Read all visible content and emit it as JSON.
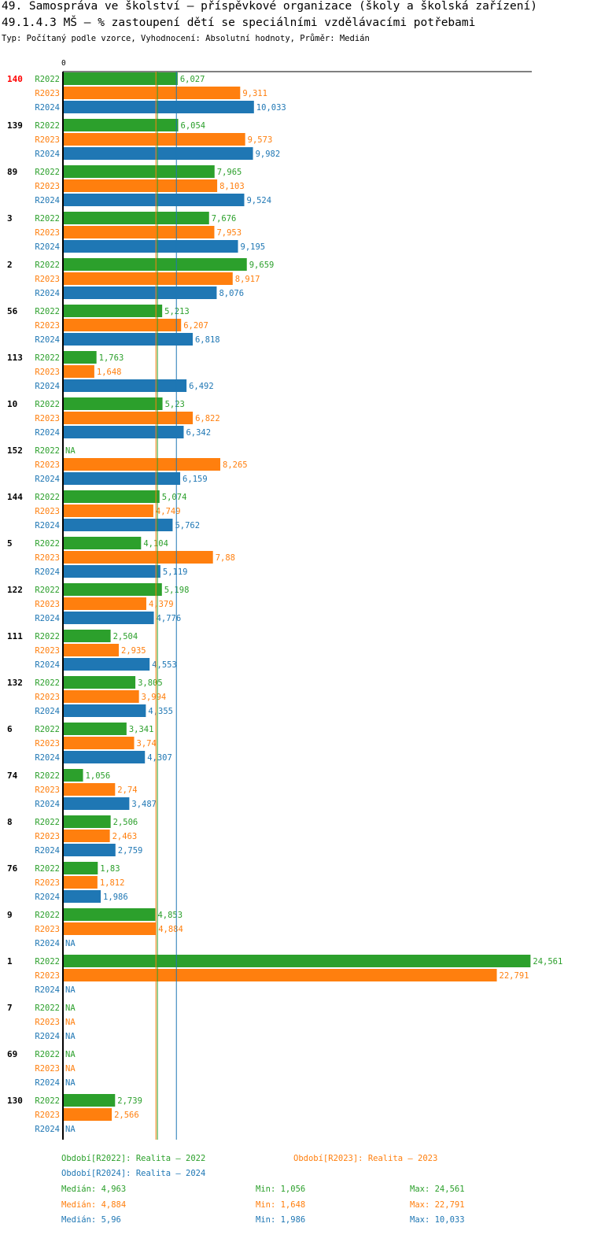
{
  "header": {
    "title_line1": "49. Samospráva ve školství – příspěvkové organizace (školy a školská zařízení)",
    "title_line2": "49.1.4.3 MŠ – % zastoupení dětí se speciálními vzdělávacími potřebami",
    "subtitle": "Typ: Počítaný podle vzorce, Vyhodnocení: Absolutní hodnoty, Průměr: Medián"
  },
  "chart_data": {
    "type": "bar",
    "orientation": "horizontal",
    "axis_zero_label": "0",
    "xlim": [
      0,
      25
    ],
    "highlight_color": "#ff0000",
    "na_label": "NA",
    "series": [
      {
        "name": "R2022",
        "color": "#2ca02c",
        "median": 4.963
      },
      {
        "name": "R2023",
        "color": "#ff7f0e",
        "median": 4.884
      },
      {
        "name": "R2024",
        "color": "#1f77b4",
        "median": 5.96
      }
    ],
    "groups": [
      {
        "label": "140",
        "highlight": true,
        "values": [
          6.027,
          9.311,
          10.033
        ],
        "texts": [
          "6,027",
          "9,311",
          "10,033"
        ]
      },
      {
        "label": "139",
        "highlight": false,
        "values": [
          6.054,
          9.573,
          9.982
        ],
        "texts": [
          "6,054",
          "9,573",
          "9,982"
        ]
      },
      {
        "label": "89",
        "highlight": false,
        "values": [
          7.965,
          8.103,
          9.524
        ],
        "texts": [
          "7,965",
          "8,103",
          "9,524"
        ]
      },
      {
        "label": "3",
        "highlight": false,
        "values": [
          7.676,
          7.953,
          9.195
        ],
        "texts": [
          "7,676",
          "7,953",
          "9,195"
        ]
      },
      {
        "label": "2",
        "highlight": false,
        "values": [
          9.659,
          8.917,
          8.076
        ],
        "texts": [
          "9,659",
          "8,917",
          "8,076"
        ]
      },
      {
        "label": "56",
        "highlight": false,
        "values": [
          5.213,
          6.207,
          6.818
        ],
        "texts": [
          "5,213",
          "6,207",
          "6,818"
        ]
      },
      {
        "label": "113",
        "highlight": false,
        "values": [
          1.763,
          1.648,
          6.492
        ],
        "texts": [
          "1,763",
          "1,648",
          "6,492"
        ]
      },
      {
        "label": "10",
        "highlight": false,
        "values": [
          5.23,
          6.822,
          6.342
        ],
        "texts": [
          "5,23",
          "6,822",
          "6,342"
        ]
      },
      {
        "label": "152",
        "highlight": false,
        "values": [
          null,
          8.265,
          6.159
        ],
        "texts": [
          null,
          "8,265",
          "6,159"
        ]
      },
      {
        "label": "144",
        "highlight": false,
        "values": [
          5.074,
          4.749,
          5.762
        ],
        "texts": [
          "5,074",
          "4,749",
          "5,762"
        ]
      },
      {
        "label": "5",
        "highlight": false,
        "values": [
          4.104,
          7.88,
          5.119
        ],
        "texts": [
          "4,104",
          "7,88",
          "5,119"
        ]
      },
      {
        "label": "122",
        "highlight": false,
        "values": [
          5.198,
          4.379,
          4.776
        ],
        "texts": [
          "5,198",
          "4,379",
          "4,776"
        ]
      },
      {
        "label": "111",
        "highlight": false,
        "values": [
          2.504,
          2.935,
          4.553
        ],
        "texts": [
          "2,504",
          "2,935",
          "4,553"
        ]
      },
      {
        "label": "132",
        "highlight": false,
        "values": [
          3.805,
          3.994,
          4.355
        ],
        "texts": [
          "3,805",
          "3,994",
          "4,355"
        ]
      },
      {
        "label": "6",
        "highlight": false,
        "values": [
          3.341,
          3.74,
          4.307
        ],
        "texts": [
          "3,341",
          "3,74",
          "4,307"
        ]
      },
      {
        "label": "74",
        "highlight": false,
        "values": [
          1.056,
          2.74,
          3.487
        ],
        "texts": [
          "1,056",
          "2,74",
          "3,487"
        ]
      },
      {
        "label": "8",
        "highlight": false,
        "values": [
          2.506,
          2.463,
          2.759
        ],
        "texts": [
          "2,506",
          "2,463",
          "2,759"
        ]
      },
      {
        "label": "76",
        "highlight": false,
        "values": [
          1.83,
          1.812,
          1.986
        ],
        "texts": [
          "1,83",
          "1,812",
          "1,986"
        ]
      },
      {
        "label": "9",
        "highlight": false,
        "values": [
          4.853,
          4.884,
          null
        ],
        "texts": [
          "4,853",
          "4,884",
          null
        ]
      },
      {
        "label": "1",
        "highlight": false,
        "values": [
          24.561,
          22.791,
          null
        ],
        "texts": [
          "24,561",
          "22,791",
          null
        ]
      },
      {
        "label": "7",
        "highlight": false,
        "values": [
          null,
          null,
          null
        ],
        "texts": [
          null,
          null,
          null
        ]
      },
      {
        "label": "69",
        "highlight": false,
        "values": [
          null,
          null,
          null
        ],
        "texts": [
          null,
          null,
          null
        ]
      },
      {
        "label": "130",
        "highlight": false,
        "values": [
          2.739,
          2.566,
          null
        ],
        "texts": [
          "2,739",
          "2,566",
          null
        ]
      }
    ]
  },
  "legend": {
    "items": [
      {
        "text": "Období[R2022]: Realita – 2022",
        "color": "#2ca02c"
      },
      {
        "text": "Období[R2023]: Realita – 2023",
        "color": "#ff7f0e"
      },
      {
        "text": "Období[R2024]: Realita – 2024",
        "color": "#1f77b4"
      }
    ],
    "stats": [
      {
        "median": "Medián: 4,963",
        "min": "Min: 1,056",
        "max": "Max: 24,561",
        "color": "#2ca02c"
      },
      {
        "median": "Medián: 4,884",
        "min": "Min: 1,648",
        "max": "Max: 22,791",
        "color": "#ff7f0e"
      },
      {
        "median": "Medián: 5,96",
        "min": "Min: 1,986",
        "max": "Max: 10,033",
        "color": "#1f77b4"
      }
    ]
  }
}
